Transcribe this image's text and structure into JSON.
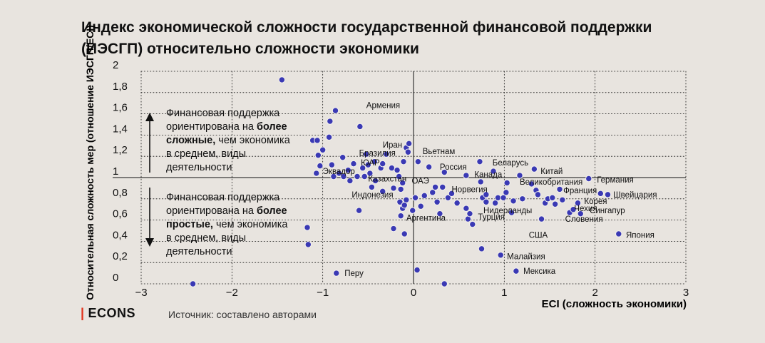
{
  "chart_data": {
    "type": "scatter",
    "title": "Индекс экономической сложности государственной финансовой поддержки (ИЭСГП) относительно сложности экономики",
    "xlabel": "ECI (сложность экономики)",
    "ylabel": "Относительная сложность мер (отношение ИЭСГП/ECI)",
    "xlim": [
      -3,
      3
    ],
    "ylim": [
      0,
      2
    ],
    "x_ticks": [
      "−3",
      "−2",
      "−1",
      "0",
      "1",
      "2",
      "3"
    ],
    "y_ticks": [
      "0",
      "0,2",
      "0,4",
      "0,6",
      "0,8",
      "1",
      "1,2",
      "1,4",
      "1,6",
      "1,8",
      "2"
    ],
    "grid": true,
    "color": "#3a39b4",
    "points": [
      {
        "x": -2.43,
        "y": 0.0
      },
      {
        "x": -1.45,
        "y": 1.92
      },
      {
        "x": -1.17,
        "y": 0.53
      },
      {
        "x": -1.16,
        "y": 0.37
      },
      {
        "x": -1.11,
        "y": 1.35
      },
      {
        "x": -1.07,
        "y": 1.04
      },
      {
        "x": -1.05,
        "y": 1.21
      },
      {
        "x": -1.06,
        "y": 1.35
      },
      {
        "x": -1.03,
        "y": 1.11
      },
      {
        "x": -1.0,
        "y": 1.26
      },
      {
        "x": -0.93,
        "y": 1.38
      },
      {
        "x": -0.92,
        "y": 1.53
      },
      {
        "x": -0.9,
        "y": 1.12
      },
      {
        "x": -0.88,
        "y": 1.01
      },
      {
        "x": -0.86,
        "y": 1.63
      },
      {
        "x": -0.85,
        "y": 0.1
      },
      {
        "x": -0.82,
        "y": 1.04
      },
      {
        "x": -0.78,
        "y": 1.19
      },
      {
        "x": -0.77,
        "y": 1.01
      },
      {
        "x": -0.72,
        "y": 1.07
      },
      {
        "x": -0.7,
        "y": 0.97
      },
      {
        "x": -0.66,
        "y": 1.13
      },
      {
        "x": -0.62,
        "y": 1.01
      },
      {
        "x": -0.6,
        "y": 0.69
      },
      {
        "x": -0.59,
        "y": 1.48
      },
      {
        "x": -0.56,
        "y": 1.09
      },
      {
        "x": -0.54,
        "y": 1.01
      },
      {
        "x": -0.52,
        "y": 1.22
      },
      {
        "x": -0.5,
        "y": 1.12
      },
      {
        "x": -0.48,
        "y": 1.04
      },
      {
        "x": -0.46,
        "y": 0.91
      },
      {
        "x": -0.43,
        "y": 1.15
      },
      {
        "x": -0.42,
        "y": 0.97
      },
      {
        "x": -0.36,
        "y": 1.09
      },
      {
        "x": -0.34,
        "y": 1.13
      },
      {
        "x": -0.34,
        "y": 0.87
      },
      {
        "x": -0.3,
        "y": 1.22
      },
      {
        "x": -0.24,
        "y": 1.09
      },
      {
        "x": -0.22,
        "y": 0.52
      },
      {
        "x": -0.22,
        "y": 0.9
      },
      {
        "x": -0.18,
        "y": 1.07
      },
      {
        "x": -0.16,
        "y": 1.01
      },
      {
        "x": -0.15,
        "y": 0.77
      },
      {
        "x": -0.14,
        "y": 0.89
      },
      {
        "x": -0.14,
        "y": 0.64
      },
      {
        "x": -0.12,
        "y": 0.95
      },
      {
        "x": -0.12,
        "y": 0.71
      },
      {
        "x": -0.11,
        "y": 1.15
      },
      {
        "x": -0.08,
        "y": 0.79
      },
      {
        "x": -0.08,
        "y": 1.28
      },
      {
        "x": -0.06,
        "y": 1.24
      },
      {
        "x": -0.05,
        "y": 1.32
      },
      {
        "x": -0.1,
        "y": 0.74
      },
      {
        "x": -0.1,
        "y": 0.47
      },
      {
        "x": -0.01,
        "y": 0.69
      },
      {
        "x": 0.02,
        "y": 0.81
      },
      {
        "x": 0.04,
        "y": 0.13
      },
      {
        "x": 0.05,
        "y": 1.15
      },
      {
        "x": 0.08,
        "y": 0.73
      },
      {
        "x": 0.12,
        "y": 0.83
      },
      {
        "x": 0.17,
        "y": 1.1
      },
      {
        "x": 0.21,
        "y": 0.86
      },
      {
        "x": 0.24,
        "y": 0.91
      },
      {
        "x": 0.26,
        "y": 0.77
      },
      {
        "x": 0.29,
        "y": 0.66
      },
      {
        "x": 0.32,
        "y": 0.91
      },
      {
        "x": 0.34,
        "y": 0.0
      },
      {
        "x": 0.34,
        "y": 1.05
      },
      {
        "x": 0.38,
        "y": 0.81
      },
      {
        "x": 0.42,
        "y": 0.85
      },
      {
        "x": 0.48,
        "y": 0.76
      },
      {
        "x": 0.58,
        "y": 1.02
      },
      {
        "x": 0.58,
        "y": 0.71
      },
      {
        "x": 0.6,
        "y": 0.61
      },
      {
        "x": 0.62,
        "y": 0.66
      },
      {
        "x": 0.65,
        "y": 0.56
      },
      {
        "x": 0.73,
        "y": 1.15
      },
      {
        "x": 0.74,
        "y": 0.96
      },
      {
        "x": 0.75,
        "y": 0.33
      },
      {
        "x": 0.76,
        "y": 0.81
      },
      {
        "x": 0.8,
        "y": 0.77
      },
      {
        "x": 0.8,
        "y": 0.84
      },
      {
        "x": 0.88,
        "y": 1.06
      },
      {
        "x": 0.9,
        "y": 0.76
      },
      {
        "x": 0.93,
        "y": 0.81
      },
      {
        "x": 0.96,
        "y": 0.27
      },
      {
        "x": 0.99,
        "y": 0.81
      },
      {
        "x": 1.02,
        "y": 0.86
      },
      {
        "x": 1.03,
        "y": 0.95
      },
      {
        "x": 1.08,
        "y": 0.67
      },
      {
        "x": 1.1,
        "y": 0.78
      },
      {
        "x": 1.13,
        "y": 0.12
      },
      {
        "x": 1.17,
        "y": 1.02
      },
      {
        "x": 1.2,
        "y": 0.8
      },
      {
        "x": 1.3,
        "y": 0.94
      },
      {
        "x": 1.33,
        "y": 1.08
      },
      {
        "x": 1.35,
        "y": 0.88
      },
      {
        "x": 1.37,
        "y": 0.84
      },
      {
        "x": 1.41,
        "y": 0.61
      },
      {
        "x": 1.45,
        "y": 0.76
      },
      {
        "x": 1.48,
        "y": 0.8
      },
      {
        "x": 1.53,
        "y": 0.81
      },
      {
        "x": 1.56,
        "y": 0.75
      },
      {
        "x": 1.61,
        "y": 0.89
      },
      {
        "x": 1.64,
        "y": 0.79
      },
      {
        "x": 1.72,
        "y": 0.67
      },
      {
        "x": 1.76,
        "y": 0.7
      },
      {
        "x": 1.81,
        "y": 0.76
      },
      {
        "x": 1.84,
        "y": 0.66
      },
      {
        "x": 1.93,
        "y": 0.99
      },
      {
        "x": 2.06,
        "y": 0.85
      },
      {
        "x": 2.14,
        "y": 0.84
      },
      {
        "x": 2.26,
        "y": 0.47
      }
    ],
    "labels": [
      {
        "text": "Армения",
        "x": -0.52,
        "y": 1.68
      },
      {
        "text": "Иран",
        "x": -0.34,
        "y": 1.31
      },
      {
        "text": "Бразилия",
        "x": -0.6,
        "y": 1.23
      },
      {
        "text": "ЮАР",
        "x": -0.58,
        "y": 1.14
      },
      {
        "text": "Эквадор",
        "x": -1.0,
        "y": 1.06
      },
      {
        "text": "Казахстан",
        "x": -0.5,
        "y": 0.99
      },
      {
        "text": "Индонезия",
        "x": -0.68,
        "y": 0.84
      },
      {
        "text": "Вьетнам",
        "x": 0.1,
        "y": 1.25
      },
      {
        "text": "Россия",
        "x": 0.29,
        "y": 1.1
      },
      {
        "text": "ОАЭ",
        "x": -0.02,
        "y": 0.97
      },
      {
        "text": "Норвегия",
        "x": 0.42,
        "y": 0.89
      },
      {
        "text": "Аргентина",
        "x": -0.08,
        "y": 0.62
      },
      {
        "text": "Перу",
        "x": -0.76,
        "y": 0.1
      },
      {
        "text": "Канада",
        "x": 0.67,
        "y": 1.03
      },
      {
        "text": "Беларусь",
        "x": 0.87,
        "y": 1.14
      },
      {
        "text": "Китай",
        "x": 1.4,
        "y": 1.06
      },
      {
        "text": "Великобритания",
        "x": 1.17,
        "y": 0.96
      },
      {
        "text": "Франция",
        "x": 1.65,
        "y": 0.88
      },
      {
        "text": "Германия",
        "x": 2.02,
        "y": 0.98
      },
      {
        "text": "Швейцария",
        "x": 2.2,
        "y": 0.84
      },
      {
        "text": "Корея",
        "x": 1.88,
        "y": 0.78
      },
      {
        "text": "Чехия",
        "x": 1.77,
        "y": 0.71
      },
      {
        "text": "Сингапур",
        "x": 1.94,
        "y": 0.69
      },
      {
        "text": "Словения",
        "x": 1.67,
        "y": 0.61
      },
      {
        "text": "Нидерланды",
        "x": 0.77,
        "y": 0.69
      },
      {
        "text": "Турция",
        "x": 0.71,
        "y": 0.63
      },
      {
        "text": "США",
        "x": 1.27,
        "y": 0.46
      },
      {
        "text": "Япония",
        "x": 2.34,
        "y": 0.46
      },
      {
        "text": "Малайзия",
        "x": 1.03,
        "y": 0.26
      },
      {
        "text": "Мексика",
        "x": 1.21,
        "y": 0.12
      }
    ],
    "annotations": {
      "upper": [
        "Финансовая поддержка",
        "ориентирована на более",
        "сложные, чем экономика",
        "в среднем, виды",
        "деятельности"
      ],
      "lower": [
        "Финансовая поддержка",
        "ориентирована на более",
        "простые, чем экономика",
        "в среднем, виды",
        "деятельности"
      ],
      "upper_bold": "более сложные",
      "lower_bold": "более простые"
    }
  },
  "footer": {
    "brand": "ECONS",
    "source": "Источник: составлено авторами"
  }
}
